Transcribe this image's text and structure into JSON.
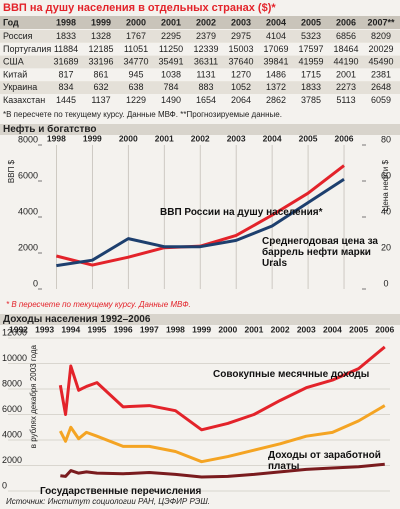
{
  "title": "ВВП на душу населения в отдельных странах ($)*",
  "table": {
    "header": [
      "Год",
      "1998",
      "1999",
      "2000",
      "2001",
      "2002",
      "2003",
      "2004",
      "2005",
      "2006",
      "2007**"
    ],
    "rows": [
      [
        "Россия",
        1833,
        1328,
        1767,
        2295,
        2379,
        2975,
        4104,
        5323,
        6856,
        8209
      ],
      [
        "Португалия",
        11884,
        12185,
        11051,
        11250,
        12339,
        15003,
        17069,
        17597,
        18464,
        20029
      ],
      [
        "США",
        31689,
        33196,
        34770,
        35491,
        36311,
        37640,
        39841,
        41959,
        44190,
        45490
      ],
      [
        "Китай",
        817,
        861,
        945,
        1038,
        1131,
        1270,
        1486,
        1715,
        2001,
        2381
      ],
      [
        "Украина",
        834,
        632,
        638,
        784,
        883,
        1052,
        1372,
        1833,
        2273,
        2648
      ],
      [
        "Казахстан",
        1445,
        1137,
        1229,
        1490,
        1654,
        2064,
        2862,
        3785,
        5113,
        6059
      ]
    ],
    "note": "*В пересчете по текущему курсу. Данные МВФ. **Прогнозируемые данные."
  },
  "chart_data": [
    {
      "type": "line",
      "title": "Нефть и богатство",
      "x": [
        1998,
        1999,
        2000,
        2001,
        2002,
        2003,
        2004,
        2005,
        2006
      ],
      "xlim": [
        1997.6,
        2006.5
      ],
      "xticks": [
        1998,
        1999,
        2000,
        2001,
        2002,
        2003,
        2004,
        2005,
        2006
      ],
      "ylim": [
        0,
        8000
      ],
      "yticks": [
        0,
        2000,
        4000,
        6000,
        8000
      ],
      "y2lim": [
        0,
        80
      ],
      "y2ticks": [
        0,
        20,
        40,
        60,
        80
      ],
      "ylabel": "ВВП $",
      "y2label": "Цена нефти $",
      "grid": "x",
      "series": [
        {
          "name": "ВВП России на душу населения*",
          "color": "#e3232a",
          "values": [
            1833,
            1328,
            1767,
            2295,
            2379,
            2975,
            4104,
            5323,
            6856
          ]
        },
        {
          "name": "Среднегодовая цена за баррель нефти марки Urals",
          "color": "#1d3f6e",
          "axis": "y2",
          "values": [
            13,
            16,
            28,
            23.5,
            23.5,
            27,
            35,
            48,
            61
          ]
        }
      ],
      "note": "* В пересчете по текущему курсу. Данные МВФ."
    },
    {
      "type": "line",
      "title": "Доходы населения 1992–2006",
      "x": [
        1993.6,
        1993.8,
        1994,
        1994.3,
        1994.6,
        1995,
        1996,
        1997,
        1998,
        1999,
        2000,
        2001,
        2002,
        2003,
        2004,
        2005,
        2006
      ],
      "xlim": [
        1991.6,
        2006.2
      ],
      "xticks": [
        1992,
        1993,
        1994,
        1995,
        1996,
        1997,
        1998,
        1999,
        2000,
        2001,
        2002,
        2003,
        2004,
        2005,
        2006
      ],
      "ylim": [
        0,
        12000
      ],
      "yticks": [
        0,
        2000,
        4000,
        6000,
        8000,
        10000,
        12000
      ],
      "ylabel": "в рублях декабря 2003 года",
      "grid": "y",
      "series": [
        {
          "name": "Совокупные месячные доходы",
          "color": "#e3232a",
          "values": [
            8300,
            6000,
            9800,
            7900,
            8200,
            8500,
            6600,
            6700,
            6300,
            4800,
            5300,
            6000,
            7100,
            8100,
            8700,
            9600,
            11300
          ]
        },
        {
          "name": "Доходы от заработной платы",
          "color": "#f4a423",
          "values": [
            4700,
            3900,
            5000,
            4100,
            4600,
            4300,
            3500,
            3500,
            3100,
            2300,
            2700,
            3200,
            3700,
            4300,
            4600,
            5500,
            6700
          ]
        },
        {
          "name": "Государственные перечисления",
          "color": "#7a1b1e",
          "values": [
            1200,
            1150,
            1600,
            1400,
            1500,
            1400,
            1350,
            1450,
            1300,
            1100,
            1150,
            1300,
            1500,
            1700,
            1800,
            1900,
            2100
          ]
        }
      ],
      "note": "Источник: Институт социологии РАН, ЦЭФИР РЭШ."
    }
  ]
}
